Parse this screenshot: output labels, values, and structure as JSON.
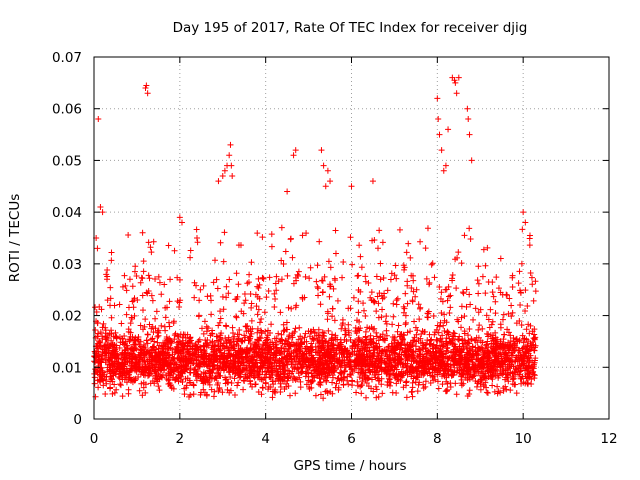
{
  "chart_data": {
    "type": "scatter",
    "title": "Day 195 of 2017, Rate Of TEC Index for receiver djig",
    "xlabel": "GPS time / hours",
    "ylabel": "ROTI / TECUs",
    "xlim": [
      0,
      12
    ],
    "ylim": [
      0,
      0.07
    ],
    "x_ticks": [
      "0",
      "2",
      "4",
      "6",
      "8",
      "10",
      "12"
    ],
    "y_ticks": [
      "0",
      "0.01",
      "0.02",
      "0.03",
      "0.04",
      "0.05",
      "0.06",
      "0.07"
    ],
    "grid": true,
    "marker": "+",
    "color": "#ff0000",
    "series": [
      {
        "name": "ROTI",
        "x": [
          0.05,
          0.08,
          0.1,
          0.15,
          0.2,
          1.2,
          1.22,
          1.25,
          2.0,
          2.05,
          2.4,
          2.9,
          3.0,
          3.05,
          3.1,
          3.15,
          3.18,
          3.2,
          3.22,
          4.5,
          4.65,
          4.7,
          5.3,
          5.35,
          5.4,
          5.45,
          5.5,
          6.0,
          6.5,
          8.0,
          8.02,
          8.05,
          8.1,
          8.15,
          8.2,
          8.25,
          8.35,
          8.4,
          8.42,
          8.45,
          8.5,
          8.7,
          8.72,
          8.75,
          8.8,
          10.0,
          10.05
        ],
        "y": [
          0.035,
          0.033,
          0.058,
          0.041,
          0.04,
          0.064,
          0.0645,
          0.063,
          0.039,
          0.038,
          0.035,
          0.046,
          0.047,
          0.048,
          0.049,
          0.051,
          0.053,
          0.049,
          0.047,
          0.044,
          0.051,
          0.052,
          0.052,
          0.049,
          0.045,
          0.048,
          0.046,
          0.045,
          0.046,
          0.062,
          0.058,
          0.055,
          0.052,
          0.048,
          0.049,
          0.056,
          0.066,
          0.0655,
          0.065,
          0.063,
          0.066,
          0.06,
          0.058,
          0.055,
          0.05,
          0.04,
          0.038
        ]
      }
    ],
    "dense_band": {
      "x_range": [
        0,
        10.3
      ],
      "typical_y_range": [
        0.003,
        0.025
      ],
      "median_y": 0.011
    }
  }
}
